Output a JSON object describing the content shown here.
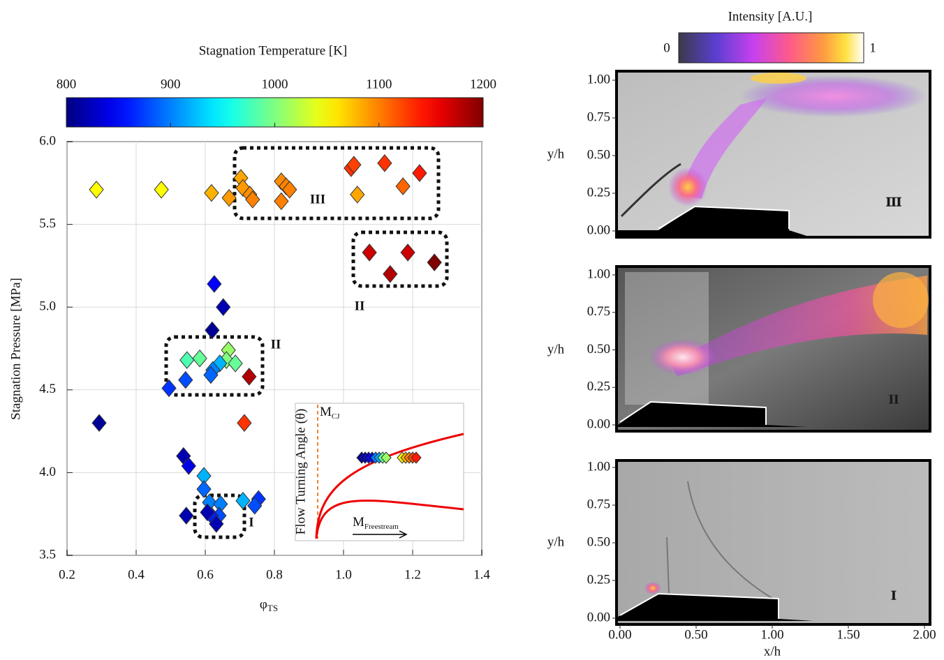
{
  "chart_data": {
    "type": "scatter",
    "ylabel": "Stagnation Pressure [MPa]",
    "xlabel": {
      "main": "φ",
      "sub": "TS"
    },
    "xlim": [
      0.2,
      1.4
    ],
    "ylim": [
      3.5,
      6.0
    ],
    "xticks": [
      0.2,
      0.4,
      0.6,
      0.8,
      {
        "value": 1,
        "label": "1.0"
      },
      1.2,
      1.4
    ],
    "yticks": [
      3.5,
      {
        "value": 4,
        "label": "4.0"
      },
      4.5,
      {
        "value": 5,
        "label": "5.0"
      },
      5.5,
      {
        "value": 6,
        "label": "6.0"
      }
    ],
    "grid": true,
    "colorbar": {
      "label": "Stagnation Temperature [K]",
      "lim": [
        800,
        1200
      ],
      "ticks": [
        800,
        900,
        1000,
        1100,
        1200
      ],
      "colormap": "jet"
    },
    "x": [
      0.285,
      0.473,
      0.618,
      0.669,
      0.703,
      0.709,
      0.729,
      0.737,
      0.82,
      0.834,
      0.844,
      0.82,
      1.022,
      1.03,
      1.119,
      1.04,
      1.172,
      1.22,
      1.075,
      1.186,
      1.135,
      1.263,
      0.626,
      0.652,
      0.62,
      0.547,
      0.584,
      0.667,
      0.661,
      0.687,
      0.642,
      0.622,
      0.616,
      0.543,
      0.495,
      0.727,
      0.293,
      0.713,
      0.537,
      0.552,
      0.596,
      0.596,
      0.612,
      0.644,
      0.64,
      0.618,
      0.606,
      0.632,
      0.545,
      0.709,
      0.754,
      0.743
    ],
    "y": [
      5.71,
      5.71,
      5.69,
      5.66,
      5.78,
      5.72,
      5.68,
      5.65,
      5.76,
      5.73,
      5.71,
      5.64,
      5.84,
      5.86,
      5.87,
      5.68,
      5.73,
      5.81,
      5.33,
      5.33,
      5.2,
      5.27,
      5.14,
      5.0,
      4.86,
      4.68,
      4.69,
      4.74,
      4.68,
      4.66,
      4.66,
      4.62,
      4.59,
      4.56,
      4.51,
      4.58,
      4.3,
      4.3,
      4.1,
      4.04,
      3.98,
      3.9,
      3.82,
      3.81,
      3.74,
      3.74,
      3.76,
      3.69,
      3.74,
      3.83,
      3.84,
      3.8
    ],
    "color_values": [
      1050,
      1050,
      1080,
      1090,
      1085,
      1090,
      1095,
      1100,
      1095,
      1100,
      1100,
      1100,
      1130,
      1125,
      1130,
      1085,
      1110,
      1140,
      1170,
      1170,
      1180,
      1200,
      850,
      820,
      810,
      980,
      990,
      1010,
      1000,
      990,
      920,
      900,
      890,
      880,
      870,
      1180,
      810,
      1130,
      820,
      840,
      920,
      890,
      900,
      900,
      880,
      860,
      820,
      820,
      820,
      920,
      870,
      880
    ],
    "annotations": [
      "III",
      "II",
      "II",
      "I"
    ],
    "inset": {
      "ylabel": "Flow Turning Angle (θ)",
      "line_label": {
        "main": "M",
        "sub": "CJ"
      },
      "xlabel": {
        "main": "M",
        "sub": "Freestream"
      }
    }
  },
  "image_panels": {
    "colorbar": {
      "label": "Intensity [A.U.]",
      "ticks": [
        0,
        1
      ]
    },
    "ylabel": "y/h",
    "xlabel": "x/h",
    "yticks": [
      {
        "value": 0,
        "label": "0.00"
      },
      {
        "value": 0.25,
        "label": "0.25"
      },
      {
        "value": 0.5,
        "label": "0.50"
      },
      {
        "value": 0.75,
        "label": "0.75"
      },
      {
        "value": 1,
        "label": "1.00"
      }
    ],
    "xticks": [
      {
        "value": 0,
        "label": "0.00"
      },
      {
        "value": 0.5,
        "label": "0.50"
      },
      {
        "value": 1,
        "label": "1.00"
      },
      {
        "value": 1.5,
        "label": "1.50"
      },
      {
        "value": 2,
        "label": "2.00"
      }
    ],
    "panels": [
      {
        "label": "III"
      },
      {
        "label": "II"
      },
      {
        "label": "I"
      }
    ]
  }
}
